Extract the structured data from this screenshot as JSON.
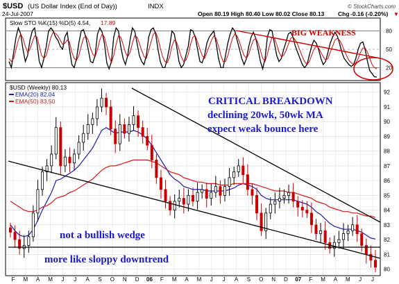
{
  "header": {
    "symbol": "$USD",
    "name": "(US Dollar Index (End of Day))",
    "exchange": "INDX",
    "date": "24-Jul-2007",
    "ohlc": "Open 80.19  High 80.40  Low 80.02  Close 80.13",
    "chg_label": "Chg",
    "chg_value": "-0.16 (-0.20%)",
    "chg_arrow": "▼",
    "watermark": "© StockCharts.com"
  },
  "colors": {
    "price_up": "#000000",
    "price_down": "#cc0000",
    "ema20": "#1a1ab8",
    "ema50": "#d81818",
    "annotation_red": "#d00000",
    "annotation_blue": "#1a1acc",
    "panel_border": "#000000"
  },
  "chart_data": [
    {
      "type": "line",
      "panel": "stochastic",
      "legend": "Slow STO %K(15) %D(5) 4.54, 17.89",
      "legend_k": "Slow STO %K(15) %D(5) 4.54,",
      "legend_d": "17.89",
      "ylim": [
        0,
        100
      ],
      "yticks": [
        20,
        50,
        80
      ],
      "series": [
        {
          "name": "%K",
          "color": "#000000",
          "values": [
            30,
            20,
            45,
            70,
            85,
            75,
            50,
            30,
            40,
            65,
            80,
            85,
            60,
            30,
            20,
            35,
            55,
            80,
            85,
            80,
            70,
            65,
            55,
            50,
            70,
            78,
            50,
            25,
            20,
            35,
            60,
            80,
            82,
            70,
            50,
            30,
            28,
            40,
            75,
            85,
            78,
            60,
            28,
            18,
            30,
            70,
            85,
            80,
            55,
            35,
            25,
            40,
            65,
            85,
            80,
            60,
            40,
            30,
            25,
            40,
            70,
            82,
            85,
            75,
            50,
            30,
            20,
            20,
            35,
            55,
            80,
            75,
            55,
            30,
            20,
            25,
            40,
            55,
            82,
            80,
            70,
            50,
            30,
            28,
            40,
            60,
            70,
            75,
            80,
            60,
            35,
            20,
            20,
            40,
            60,
            75,
            85,
            80,
            65,
            50,
            35,
            25,
            35,
            55,
            70,
            78,
            68,
            50,
            30,
            18,
            35,
            70,
            82,
            80,
            60,
            40,
            30,
            35,
            50,
            62,
            75,
            78,
            70,
            55,
            45,
            35,
            25,
            20,
            25,
            40,
            55,
            65,
            60,
            50,
            35,
            25,
            30,
            45,
            60,
            70,
            78,
            72,
            60,
            45,
            35,
            30,
            25,
            22,
            25,
            35,
            50,
            60,
            62,
            50,
            30,
            15,
            10,
            5,
            4.54
          ]
        },
        {
          "name": "%D",
          "color": "#dd0000",
          "values": [
            35,
            30,
            35,
            50,
            65,
            75,
            68,
            55,
            45,
            50,
            62,
            72,
            70,
            55,
            40,
            35,
            40,
            55,
            70,
            78,
            76,
            72,
            65,
            58,
            60,
            65,
            62,
            45,
            35,
            32,
            40,
            55,
            68,
            72,
            65,
            52,
            42,
            38,
            50,
            65,
            75,
            70,
            55,
            38,
            28,
            40,
            58,
            72,
            70,
            58,
            45,
            38,
            45,
            60,
            72,
            70,
            60,
            48,
            38,
            35,
            48,
            62,
            75,
            78,
            68,
            52,
            38,
            30,
            28,
            38,
            55,
            65,
            62,
            50,
            38,
            30,
            32,
            42,
            58,
            70,
            72,
            62,
            50,
            40,
            35,
            45,
            55,
            65,
            72,
            68,
            55,
            40,
            30,
            30,
            40,
            55,
            68,
            75,
            72,
            62,
            50,
            40,
            35,
            42,
            55,
            65,
            68,
            60,
            48,
            35,
            30,
            42,
            58,
            70,
            68,
            58,
            45,
            38,
            40,
            48,
            58,
            68,
            70,
            65,
            58,
            48,
            38,
            30,
            25,
            30,
            40,
            50,
            55,
            52,
            45,
            38,
            32,
            35,
            45,
            55,
            65,
            68,
            65,
            58,
            48,
            40,
            32,
            28,
            25,
            28,
            35,
            45,
            52,
            52,
            45,
            35,
            25,
            20,
            17.89
          ]
        }
      ],
      "annotations": [
        "BIG WEAKNESS"
      ]
    },
    {
      "type": "ohlc",
      "panel": "price",
      "legend": "$USD (Weekly) 80.13",
      "title": "$USD (Weekly) 80.13",
      "ylim": [
        79.6,
        92.6
      ],
      "yticks": [
        80,
        81,
        82,
        83,
        84,
        85,
        86,
        87,
        88,
        89,
        90,
        91,
        92
      ],
      "xticks": [
        "F",
        "M",
        "A",
        "M",
        "J",
        "J",
        "A",
        "S",
        "O",
        "N",
        "D",
        "06",
        "F",
        "M",
        "A",
        "M",
        "J",
        "J",
        "A",
        "S",
        "O",
        "N",
        "D",
        "07",
        "F",
        "M",
        "A",
        "M",
        "J",
        "J"
      ],
      "series": [
        {
          "name": "$USD",
          "values": [
            82.5,
            82.0,
            81.4,
            81.6,
            82.2,
            83.8,
            85.4,
            86.6,
            87.0,
            87.8,
            89.6,
            87.0,
            87.6,
            87.2,
            87.8,
            88.6,
            89.2,
            89.8,
            90.2,
            91.0,
            91.6,
            91.0,
            89.5,
            88.5,
            89.8,
            89.2,
            89.8,
            90.4,
            89.6,
            89.0,
            88.4,
            87.4,
            86.2,
            85.4,
            84.6,
            84.0,
            84.6,
            84.8,
            84.4,
            85.0,
            84.6,
            85.2,
            85.4,
            84.8,
            85.2,
            85.6,
            85.0,
            85.6,
            86.2,
            86.6,
            87.0,
            86.4,
            85.4,
            85.0,
            83.8,
            82.6,
            83.8,
            84.4,
            84.6,
            84.8,
            85.0,
            85.2,
            84.6,
            84.2,
            84.0,
            83.8,
            83.0,
            82.4,
            82.6,
            81.8,
            81.4,
            81.8,
            82.0,
            82.4,
            82.6,
            83.0,
            82.4,
            81.6,
            81.0,
            80.6,
            80.13
          ]
        },
        {
          "name": "EMA(20) 82.04",
          "color": "#1a1ab8",
          "values": [
            83.0,
            82.6,
            82.3,
            82.2,
            82.3,
            82.7,
            83.3,
            84.0,
            84.6,
            85.2,
            86.0,
            86.1,
            86.3,
            86.5,
            86.7,
            87.0,
            87.4,
            87.8,
            88.2,
            88.8,
            89.4,
            89.6,
            89.4,
            89.2,
            89.3,
            89.3,
            89.3,
            89.4,
            89.3,
            89.1,
            88.8,
            88.4,
            87.9,
            87.4,
            86.9,
            86.4,
            86.1,
            85.9,
            85.6,
            85.5,
            85.4,
            85.4,
            85.4,
            85.3,
            85.3,
            85.3,
            85.3,
            85.3,
            85.4,
            85.5,
            85.7,
            85.8,
            85.7,
            85.6,
            85.4,
            85.0,
            84.8,
            84.7,
            84.7,
            84.7,
            84.7,
            84.7,
            84.7,
            84.6,
            84.5,
            84.4,
            84.2,
            83.9,
            83.7,
            83.4,
            83.1,
            82.9,
            82.8,
            82.7,
            82.7,
            82.7,
            82.6,
            82.5,
            82.3,
            82.1,
            82.04
          ]
        },
        {
          "name": "EMA(50) 83.50",
          "color": "#d81818",
          "values": [
            84.6,
            84.4,
            84.2,
            84.0,
            83.9,
            83.9,
            84.0,
            84.2,
            84.3,
            84.5,
            84.8,
            84.9,
            85.0,
            85.2,
            85.3,
            85.5,
            85.7,
            85.9,
            86.1,
            86.4,
            86.7,
            86.9,
            87.0,
            87.0,
            87.1,
            87.2,
            87.3,
            87.4,
            87.4,
            87.4,
            87.4,
            87.3,
            87.2,
            87.0,
            86.8,
            86.6,
            86.5,
            86.4,
            86.2,
            86.1,
            86.0,
            85.9,
            85.9,
            85.8,
            85.8,
            85.8,
            85.7,
            85.7,
            85.7,
            85.8,
            85.8,
            85.8,
            85.8,
            85.8,
            85.7,
            85.6,
            85.5,
            85.4,
            85.3,
            85.3,
            85.3,
            85.2,
            85.2,
            85.1,
            85.0,
            84.9,
            84.8,
            84.6,
            84.5,
            84.4,
            84.2,
            84.1,
            84.0,
            83.9,
            83.9,
            83.8,
            83.8,
            83.7,
            83.6,
            83.6,
            83.5
          ]
        }
      ],
      "legend_entries": [
        "EMA(20) 82.04",
        "EMA(50) 83.50"
      ],
      "annotations": [
        "CRITICAL BREAKDOWN",
        "declining 20wk, 50wk MA",
        "expect weak bounce here",
        "not a bullish wedge",
        "more like sloppy downtrend"
      ]
    }
  ]
}
